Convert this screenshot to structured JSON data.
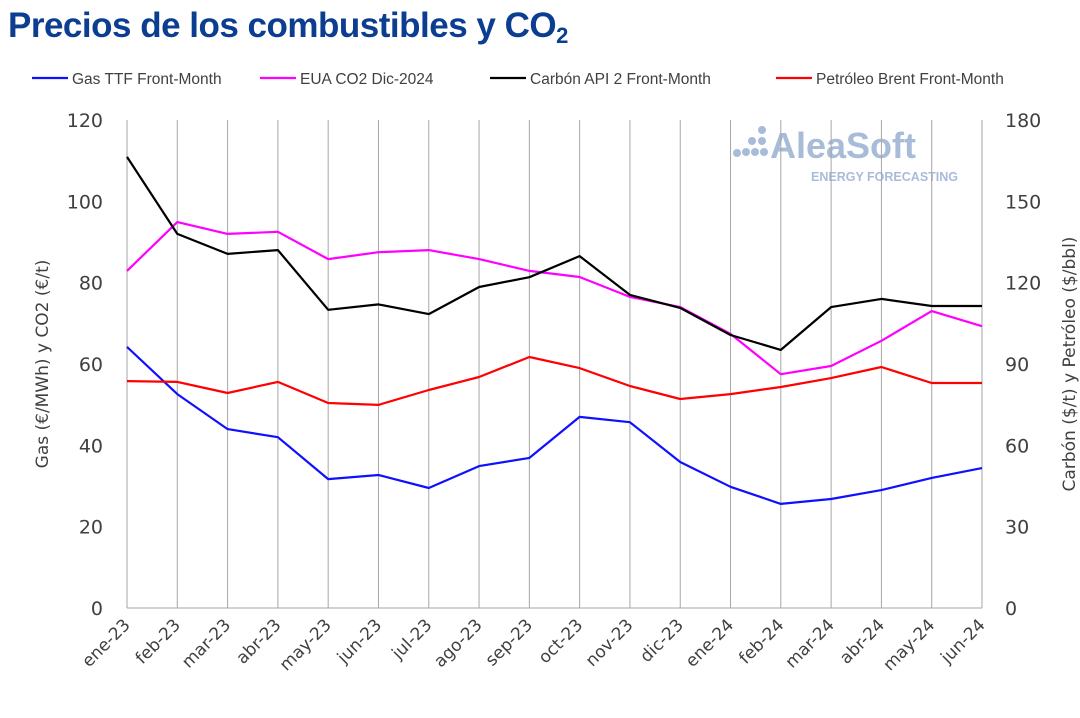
{
  "title": {
    "main": "Precios de los combustibles y CO",
    "sub": "2"
  },
  "logo": {
    "name": "AleaSoft",
    "tagline": "ENERGY FORECASTING"
  },
  "chart_data": {
    "type": "line",
    "title": "Precios de los combustibles y CO2",
    "categories": [
      "ene-23",
      "feb-23",
      "mar-23",
      "abr-23",
      "may-23",
      "jun-23",
      "jul-23",
      "ago-23",
      "sep-23",
      "oct-23",
      "nov-23",
      "dic-23",
      "ene-24",
      "feb-24",
      "mar-24",
      "abr-24",
      "may-24",
      "jun-24"
    ],
    "ylabel": "Gas (€/MWh) y CO2 (€/t)",
    "y2label": "Carbón ($/t) y Petróleo ($/bbl)",
    "ylim": [
      0,
      120
    ],
    "y2lim": [
      0,
      180
    ],
    "yticks": [
      0,
      20,
      40,
      60,
      80,
      100,
      120
    ],
    "y2ticks": [
      0,
      30,
      60,
      90,
      120,
      150,
      180
    ],
    "grid": "vertical",
    "legend": "top",
    "series": [
      {
        "name": "Gas TTF Front-Month",
        "axis": "left",
        "color": "#1010ff",
        "values": [
          64.2,
          52.6,
          44.0,
          42.0,
          31.7,
          32.7,
          29.5,
          34.9,
          36.9,
          47.0,
          45.7,
          35.9,
          29.8,
          25.6,
          26.8,
          29.0,
          32.0,
          34.4
        ]
      },
      {
        "name": "EUA CO2 Dic-2024",
        "axis": "left",
        "color": "#ff00ff",
        "values": [
          82.9,
          94.9,
          92.0,
          92.5,
          85.8,
          87.5,
          88.0,
          85.8,
          82.9,
          81.4,
          76.5,
          74.0,
          67.4,
          57.5,
          59.5,
          65.7,
          73.0,
          69.3
        ]
      },
      {
        "name": "Carbón API 2 Front-Month",
        "axis": "right",
        "color": "#000000",
        "values": [
          166.4,
          138.0,
          130.6,
          132.0,
          110.0,
          112.0,
          108.4,
          118.4,
          122.0,
          129.8,
          115.5,
          110.7,
          100.7,
          95.2,
          111.0,
          114.0,
          111.4,
          111.4
        ]
      },
      {
        "name": "Petróleo Brent Front-Month",
        "axis": "right",
        "color": "#ff0000",
        "values": [
          83.7,
          83.4,
          79.3,
          83.4,
          75.6,
          74.9,
          80.4,
          85.2,
          92.6,
          88.5,
          81.9,
          77.1,
          78.9,
          81.5,
          84.8,
          88.9,
          83.0,
          83.0
        ]
      }
    ]
  }
}
